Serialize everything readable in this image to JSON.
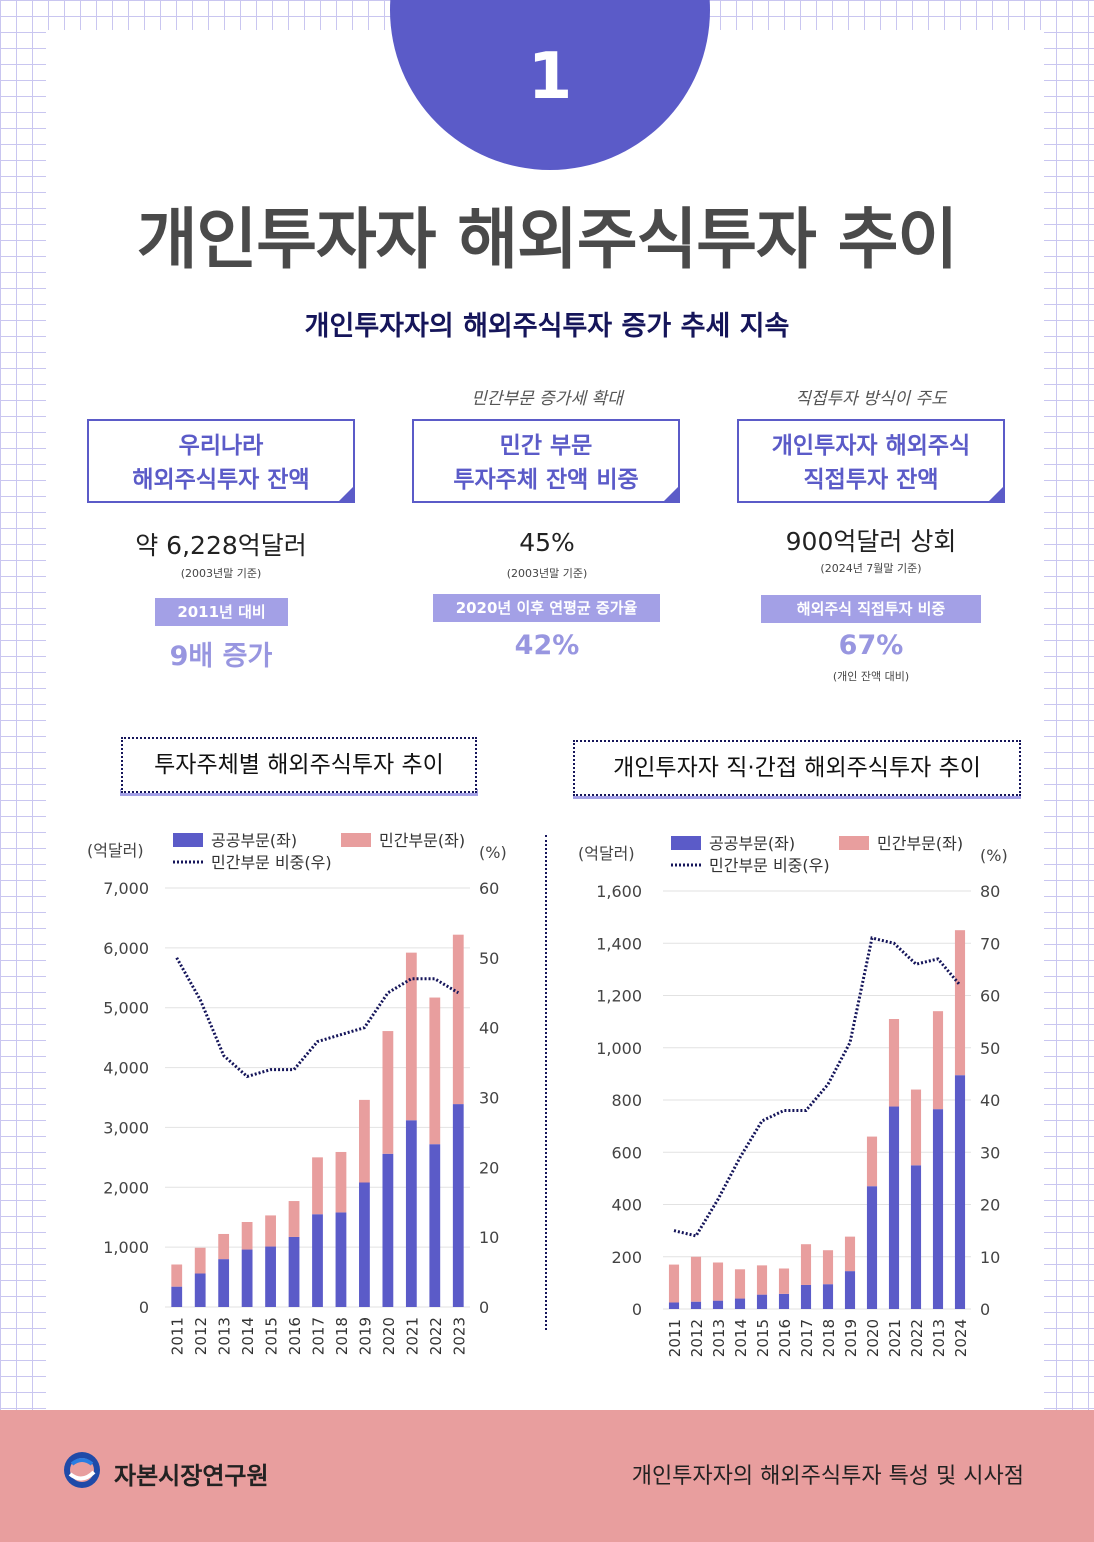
{
  "number": "1",
  "title": "개인투자자 해외주식투자 추이",
  "subtitle": "개인투자자의 해외주식투자 증가 추세 지속",
  "stats": [
    {
      "tagline": "",
      "box": [
        "우리나라",
        "해외주식투자 잔액"
      ],
      "value": "약 6,228억달러",
      "note": "(2003년말 기준)",
      "band": "2011년 대비",
      "big": "9배 증가",
      "foot": ""
    },
    {
      "tagline": "민간부문 증가세 확대",
      "box": [
        "민간 부문",
        "투자주체 잔액 비중"
      ],
      "value": "45%",
      "note": "(2003년말 기준)",
      "band": "2020년 이후 연평균 증가율",
      "big": "42%",
      "foot": ""
    },
    {
      "tagline": "직접투자 방식이 주도",
      "box": [
        "개인투자자 해외주식",
        "직접투자 잔액"
      ],
      "value": "900억달러 상회",
      "note": "(2024년 7월말 기준)",
      "band": "해외주식 직접투자 비중",
      "big": "67%",
      "foot": "(개인 잔액 대비)"
    }
  ],
  "colors": {
    "primary": "#5b5bc8",
    "pink": "#e89e9e",
    "navy": "#15155a",
    "band": "#a3a0e6"
  },
  "chart_data": [
    {
      "type": "bar",
      "stacked": true,
      "title": "투자주체별 해외주식투자 추이",
      "ylabel": "(억달러)",
      "y2label": "(%)",
      "ylim": [
        0,
        7000
      ],
      "yticks": [
        0,
        1000,
        2000,
        3000,
        4000,
        5000,
        6000,
        7000
      ],
      "y2lim": [
        0,
        60
      ],
      "y2ticks": [
        0,
        10,
        20,
        30,
        40,
        50,
        60
      ],
      "categories": [
        "2011",
        "2012",
        "2013",
        "2014",
        "2015",
        "2016",
        "2017",
        "2018",
        "2019",
        "2020",
        "2021",
        "2022",
        "2023"
      ],
      "series": [
        {
          "name": "공공부문(좌)",
          "type": "bar",
          "values": [
            340,
            560,
            800,
            960,
            1010,
            1170,
            1550,
            1580,
            2080,
            2560,
            3120,
            2720,
            3390
          ]
        },
        {
          "name": "민간부문(좌)",
          "type": "bar",
          "values": [
            370,
            430,
            420,
            460,
            520,
            600,
            950,
            1010,
            1380,
            2050,
            2800,
            2450,
            2830
          ]
        },
        {
          "name": "민간부문 비중(우)",
          "type": "line",
          "axis": "right",
          "values": [
            50,
            44,
            36,
            33,
            34,
            34,
            38,
            39,
            40,
            45,
            47,
            47,
            45
          ]
        }
      ]
    },
    {
      "type": "bar",
      "stacked": true,
      "title": "개인투자자 직·간접 해외주식투자 추이",
      "ylabel": "(억달러)",
      "y2label": "(%)",
      "ylim": [
        0,
        1600
      ],
      "yticks": [
        0,
        200,
        400,
        600,
        800,
        1000,
        1200,
        1400,
        1600
      ],
      "y2lim": [
        0,
        80
      ],
      "y2ticks": [
        0,
        10,
        20,
        30,
        40,
        50,
        60,
        70,
        80
      ],
      "categories": [
        "2011",
        "2012",
        "2013",
        "2014",
        "2015",
        "2016",
        "2017",
        "2018",
        "2019",
        "2020",
        "2021",
        "2022",
        "2013",
        "2024"
      ],
      "series": [
        {
          "name": "공공부문(좌)",
          "type": "bar",
          "values": [
            25,
            28,
            32,
            40,
            55,
            58,
            92,
            95,
            145,
            470,
            775,
            550,
            765,
            895
          ]
        },
        {
          "name": "민간부문(좌)",
          "type": "bar",
          "values": [
            145,
            172,
            146,
            112,
            112,
            97,
            156,
            130,
            132,
            190,
            335,
            290,
            375,
            555
          ]
        },
        {
          "name": "민간부문 비중(우)",
          "type": "line",
          "axis": "right",
          "values": [
            15,
            14,
            21,
            29,
            36,
            38,
            38,
            43,
            51,
            71,
            70,
            66,
            67,
            62
          ]
        }
      ]
    }
  ],
  "footer": {
    "org": "자본시장연구원",
    "report": "개인투자자의 해외주식투자 특성 및 시사점"
  }
}
